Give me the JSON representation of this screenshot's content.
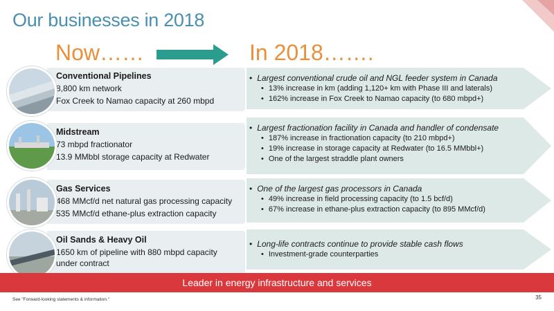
{
  "title": "Our businesses in 2018",
  "now_label": "Now……",
  "future_label": "In 2018…….",
  "rows": [
    {
      "heading": "Conventional Pipelines",
      "lines": [
        "8,800 km network",
        "Fox Creek to Namao capacity at 260 mbpd"
      ],
      "highlight": "Largest conventional crude oil and NGL feeder system in Canada",
      "bullets": [
        "13% increase in km (adding 1,120+ km with Phase III and laterals)",
        "162% increase in Fox Creek to Namao capacity (to 680 mbpd+)"
      ]
    },
    {
      "heading": "Midstream",
      "lines": [
        "73 mbpd fractionator",
        "13.9 MMbbl storage capacity at Redwater"
      ],
      "highlight": "Largest fractionation facility in Canada and handler of condensate",
      "bullets": [
        "187% increase in fractionation capacity (to 210 mbpd+)",
        "19% increase in storage capacity at Redwater (to 16.5 MMbbl+)",
        "One of the largest straddle plant owners"
      ]
    },
    {
      "heading": "Gas Services",
      "lines": [
        "468 MMcf/d net natural gas processing capacity",
        "535 MMcf/d ethane-plus extraction capacity"
      ],
      "highlight": "One of the largest gas processors in Canada",
      "bullets": [
        "49% increase in field processing capacity (to 1.5 bcf/d)",
        "67% increase in ethane-plus extraction capacity (to 895 MMcf/d)"
      ]
    },
    {
      "heading": "Oil Sands & Heavy Oil",
      "lines": [
        "1650 km of pipeline with 880 mbpd capacity under contract"
      ],
      "highlight": "Long-life contracts continue to provide stable cash flows",
      "bullets": [
        "Investment-grade counterparties"
      ]
    }
  ],
  "banner": "Leader in energy infrastructure and services",
  "footnote": "See \"Forward-looking statements & information.\"",
  "page_number": "35",
  "colors": {
    "title": "#4a8fb0",
    "accent_orange": "#e8903c",
    "arrow_teal": "#2a9d8f",
    "banner_red": "#d9383d",
    "panel_gray": "#e9eef0",
    "panel_teal": "#dde9e7"
  }
}
